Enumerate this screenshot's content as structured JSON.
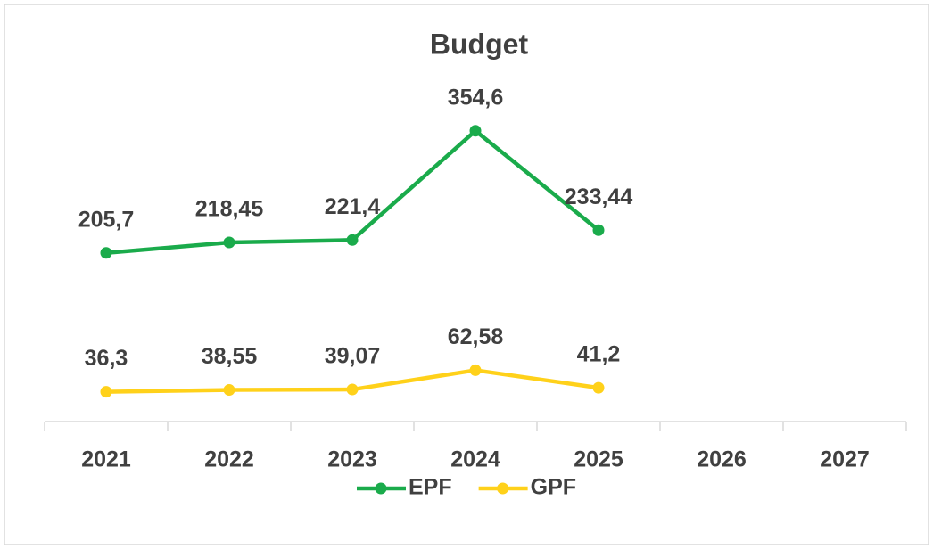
{
  "chart_data": {
    "type": "line",
    "title": "Budget",
    "categories": [
      "2021",
      "2022",
      "2023",
      "2024",
      "2025",
      "2026",
      "2027"
    ],
    "series": [
      {
        "name": "EPF",
        "color": "#1aab4b",
        "values": [
          205.7,
          218.45,
          221.4,
          354.6,
          233.44,
          null,
          null
        ],
        "value_labels": [
          "205,7",
          "218,45",
          "221,4",
          "354,6",
          "233,44",
          null,
          null
        ]
      },
      {
        "name": "GPF",
        "color": "#ffd11a",
        "values": [
          36.3,
          38.55,
          39.07,
          62.58,
          41.2,
          null,
          null
        ],
        "value_labels": [
          "36,3",
          "38,55",
          "39,07",
          "62,58",
          "41,2",
          null,
          null
        ]
      }
    ],
    "ylim": [
      0,
      400
    ],
    "legend": "bottom"
  }
}
